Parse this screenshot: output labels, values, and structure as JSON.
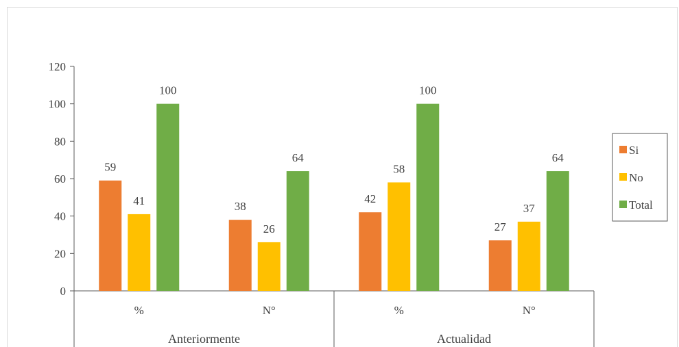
{
  "chart_data": {
    "type": "bar",
    "title": "",
    "xlabel": "",
    "ylabel": "",
    "ylim": [
      0,
      120
    ],
    "yticks": [
      0,
      20,
      40,
      60,
      80,
      100,
      120
    ],
    "groups": [
      {
        "label": "Anteriormente",
        "categories": [
          "%",
          "N°"
        ]
      },
      {
        "label": "Actualidad",
        "categories": [
          "%",
          "N°"
        ]
      }
    ],
    "categories": [
      "%",
      "N°",
      "%",
      "N°"
    ],
    "series": [
      {
        "name": "Si",
        "color": "#ed7d31",
        "values": [
          59,
          38,
          42,
          27
        ]
      },
      {
        "name": "No",
        "color": "#ffc000",
        "values": [
          41,
          26,
          58,
          37
        ]
      },
      {
        "name": "Total",
        "color": "#70ad47",
        "values": [
          100,
          64,
          100,
          64
        ]
      }
    ],
    "grid": false,
    "legend": "right"
  }
}
